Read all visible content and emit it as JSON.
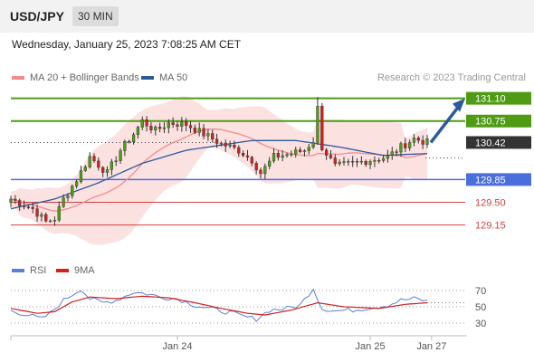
{
  "header": {
    "symbol": "USD/JPY",
    "timeframe": "30 MIN"
  },
  "subtitle": "Wednesday, January 25, 2023 7:08:25 AM CET",
  "copyright": "Research © 2023 Trading Central",
  "colors": {
    "ma20": "#f08c8c",
    "ma50": "#2c5a9c",
    "resistance": "#4f9c14",
    "support_blue": "#4a6fdc",
    "support_red": "#d04040",
    "bull": "#4f9c14",
    "bear": "#cc2222",
    "current": "#333333",
    "rsi": "#5b7fd4",
    "rsi_ma": "#d02020",
    "arrow": "#2c5a9c"
  },
  "chart_data": [
    {
      "type": "candlestick",
      "legend": [
        {
          "name": "MA 20 + Bollinger Bands",
          "color": "#f08c8c"
        },
        {
          "name": "MA 50",
          "color": "#2c5a9c"
        }
      ],
      "ylim": [
        128.95,
        131.22
      ],
      "current_price": 130.42,
      "levels": [
        {
          "label": "131.10",
          "value": 131.1,
          "kind": "resistance"
        },
        {
          "label": "130.75",
          "value": 130.75,
          "kind": "resistance"
        },
        {
          "label": "130.42",
          "value": 130.42,
          "kind": "current"
        },
        {
          "label": "129.85",
          "value": 129.85,
          "kind": "support_blue"
        },
        {
          "label": "129.50",
          "value": 129.5,
          "kind": "support_red"
        },
        {
          "label": "129.15",
          "value": 129.15,
          "kind": "support_red"
        }
      ],
      "close_path": [
        [
          0,
          129.55
        ],
        [
          5,
          129.4
        ],
        [
          8,
          129.2
        ],
        [
          10,
          129.25
        ],
        [
          12,
          129.55
        ],
        [
          15,
          129.85
        ],
        [
          18,
          130.2
        ],
        [
          22,
          129.95
        ],
        [
          25,
          130.3
        ],
        [
          28,
          130.55
        ],
        [
          30,
          130.75
        ],
        [
          33,
          130.6
        ],
        [
          36,
          130.72
        ],
        [
          40,
          130.7
        ],
        [
          44,
          130.55
        ],
        [
          48,
          130.4
        ],
        [
          52,
          130.3
        ],
        [
          55,
          130.15
        ],
        [
          57,
          129.95
        ],
        [
          60,
          130.2
        ],
        [
          64,
          130.25
        ],
        [
          67,
          130.3
        ],
        [
          69,
          130.45
        ],
        [
          70,
          130.95
        ],
        [
          71,
          130.35
        ],
        [
          74,
          130.05
        ],
        [
          78,
          130.1
        ],
        [
          82,
          130.15
        ],
        [
          86,
          130.2
        ],
        [
          89,
          130.35
        ],
        [
          92,
          130.48
        ],
        [
          95,
          130.42
        ]
      ],
      "ma50_path": [
        [
          0,
          129.4
        ],
        [
          10,
          129.55
        ],
        [
          20,
          129.8
        ],
        [
          30,
          130.1
        ],
        [
          40,
          130.3
        ],
        [
          55,
          130.45
        ],
        [
          65,
          130.45
        ],
        [
          75,
          130.35
        ],
        [
          85,
          130.22
        ],
        [
          95,
          130.25
        ]
      ],
      "x_ticks": [
        {
          "label": "Jan 24",
          "t": 38
        },
        {
          "label": "Jan 25",
          "t": 82
        },
        {
          "label": "Jan 27",
          "t": 96
        }
      ],
      "x_range": [
        0,
        104
      ]
    },
    {
      "type": "line",
      "legend": [
        {
          "name": "RSI",
          "color": "#5b7fd4"
        },
        {
          "name": "9MA",
          "color": "#d02020"
        }
      ],
      "ylim": [
        20,
        80
      ],
      "y_ticks": [
        70,
        50,
        30
      ],
      "rsi": [
        [
          0,
          45
        ],
        [
          4,
          40
        ],
        [
          7,
          35
        ],
        [
          9,
          42
        ],
        [
          12,
          58
        ],
        [
          14,
          65
        ],
        [
          16,
          72
        ],
        [
          18,
          60
        ],
        [
          21,
          55
        ],
        [
          24,
          58
        ],
        [
          28,
          68
        ],
        [
          31,
          66
        ],
        [
          34,
          62
        ],
        [
          38,
          60
        ],
        [
          42,
          52
        ],
        [
          46,
          47
        ],
        [
          50,
          43
        ],
        [
          53,
          38
        ],
        [
          56,
          35
        ],
        [
          59,
          46
        ],
        [
          63,
          48
        ],
        [
          66,
          52
        ],
        [
          69,
          73
        ],
        [
          71,
          48
        ],
        [
          74,
          45
        ],
        [
          78,
          46
        ],
        [
          82,
          49
        ],
        [
          86,
          52
        ],
        [
          89,
          58
        ],
        [
          92,
          60
        ],
        [
          95,
          57
        ]
      ],
      "rsi_ma": [
        [
          0,
          48
        ],
        [
          6,
          42
        ],
        [
          10,
          44
        ],
        [
          14,
          56
        ],
        [
          18,
          62
        ],
        [
          24,
          60
        ],
        [
          30,
          63
        ],
        [
          36,
          61
        ],
        [
          42,
          55
        ],
        [
          48,
          48
        ],
        [
          54,
          42
        ],
        [
          58,
          40
        ],
        [
          64,
          46
        ],
        [
          70,
          55
        ],
        [
          76,
          50
        ],
        [
          84,
          48
        ],
        [
          90,
          53
        ],
        [
          95,
          55
        ]
      ]
    }
  ]
}
